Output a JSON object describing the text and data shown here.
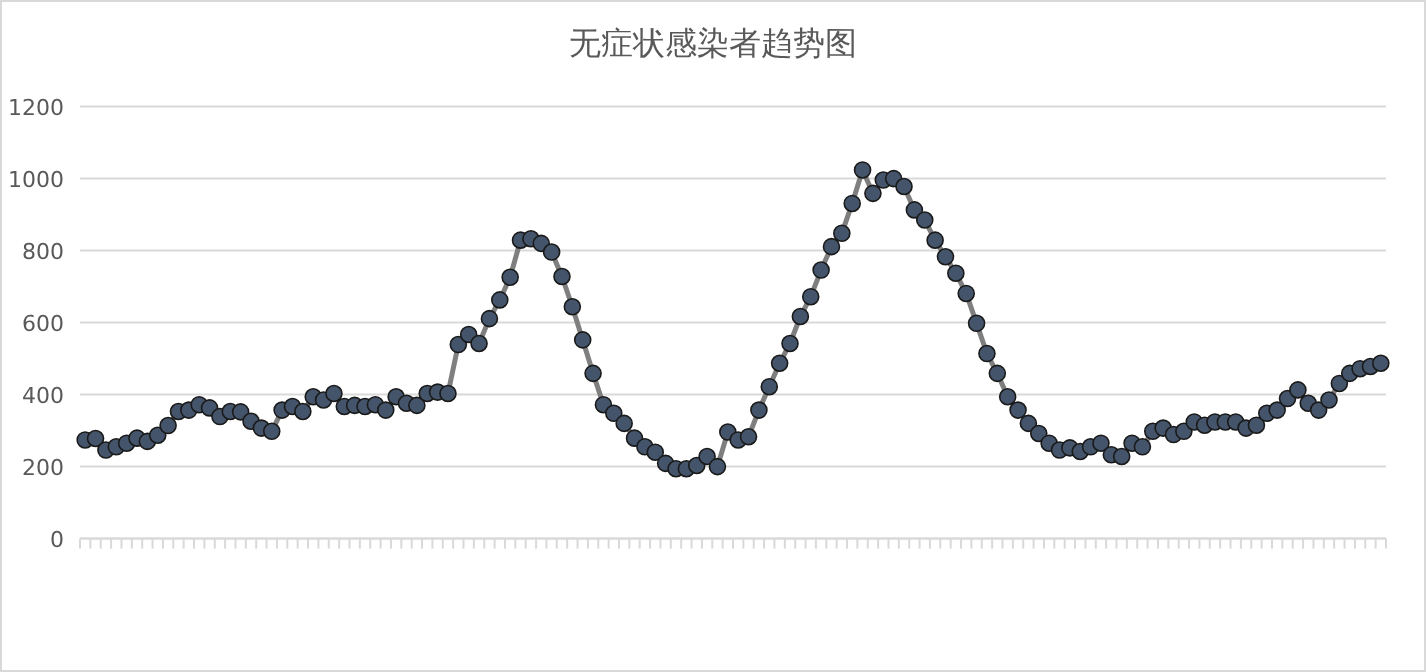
{
  "chart_data": {
    "type": "line",
    "title": "无症状感染者趋势图",
    "categories": [
      null,
      null,
      null,
      null,
      null,
      null,
      null,
      null,
      null,
      null,
      null,
      null,
      null,
      null,
      null,
      null,
      null,
      null,
      null,
      null,
      null,
      null,
      null,
      null,
      null,
      null,
      null,
      null,
      null,
      null,
      null,
      null,
      null,
      null,
      null,
      null,
      null,
      null,
      null,
      null,
      null,
      null,
      null,
      null,
      null,
      null,
      null,
      null,
      null,
      null,
      null,
      null,
      null,
      null,
      null,
      null,
      null,
      null,
      null,
      null,
      null,
      null,
      null,
      null,
      null,
      null,
      null,
      null,
      null,
      null,
      null,
      null,
      null,
      null,
      null,
      null,
      null,
      null,
      null,
      null,
      null,
      null,
      null,
      null,
      null,
      null,
      null,
      null,
      null,
      null,
      null,
      null,
      null,
      null,
      null,
      null,
      null,
      null,
      null,
      null,
      null,
      null,
      null,
      null,
      null,
      null,
      null,
      null,
      null,
      null,
      null,
      null,
      null,
      null,
      null,
      null,
      null,
      null,
      null,
      null,
      null,
      null,
      null,
      null,
      null,
      null
    ],
    "series": [
      {
        "color": "#44546a",
        "values": [
          274,
          278,
          246,
          255,
          265,
          279,
          270,
          287,
          314,
          353,
          357,
          372,
          363,
          339,
          353,
          352,
          326,
          307,
          298,
          357,
          367,
          353,
          394,
          385,
          403,
          367,
          370,
          367,
          372,
          357,
          394,
          376,
          370,
          403,
          407,
          403,
          539,
          567,
          542,
          611,
          663,
          726,
          829,
          833,
          820,
          796,
          728,
          644,
          552,
          459,
          372,
          348,
          320,
          279,
          255,
          240,
          209,
          194,
          194,
          203,
          228,
          200,
          296,
          274,
          283,
          357,
          422,
          487,
          542,
          617,
          672,
          746,
          811,
          848,
          931,
          1024,
          959,
          996,
          1000,
          978,
          913,
          885,
          829,
          783,
          737,
          681,
          598,
          514,
          459,
          394,
          357,
          320,
          292,
          265,
          246,
          252,
          242,
          255,
          265,
          233,
          228,
          265,
          255,
          298,
          307,
          289,
          298,
          324,
          315,
          324,
          324,
          324,
          307,
          315,
          348,
          357,
          389,
          413,
          376,
          357,
          385,
          431,
          459,
          472,
          478,
          487
        ]
      }
    ],
    "ylim": [
      0,
      1200
    ],
    "yticks": [
      0,
      200,
      400,
      600,
      800,
      1000,
      1200
    ],
    "grid": "y",
    "marker": "circle",
    "line_style": "solid",
    "tick_labels": "y"
  }
}
